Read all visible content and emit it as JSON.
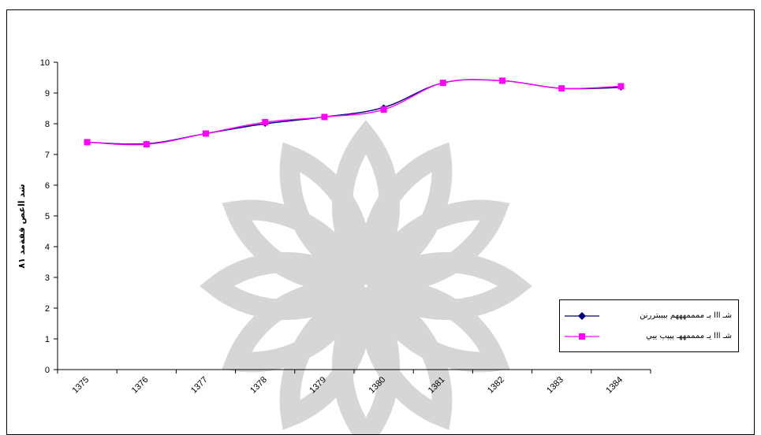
{
  "chart_data": {
    "type": "line",
    "categories": [
      "1375",
      "1376",
      "1377",
      "1378",
      "1379",
      "1380",
      "1381",
      "1382",
      "1383",
      "1384"
    ],
    "series": [
      {
        "name": "شـ ااا بـ ممممهههم ببببتررنن",
        "color": "#000080",
        "marker": "diamond",
        "values": [
          7.4,
          7.35,
          7.68,
          8.0,
          8.22,
          8.53,
          9.33,
          9.4,
          9.15,
          9.18
        ]
      },
      {
        "name": "شـ ااا يـ ممممههـ پپپپ ييي",
        "color": "#ff00ff",
        "marker": "square",
        "values": [
          7.4,
          7.33,
          7.68,
          8.05,
          8.22,
          8.46,
          9.33,
          9.4,
          9.15,
          9.22
        ]
      }
    ],
    "ylim": [
      0,
      10
    ],
    "yticks": [
      0,
      1,
      2,
      3,
      4,
      5,
      6,
      7,
      8,
      9,
      10
    ],
    "ylabel": "شد ااعص ققةمد ٨١",
    "xlabel": "",
    "title": "",
    "grid": false,
    "legend_position": "right-bottom"
  }
}
